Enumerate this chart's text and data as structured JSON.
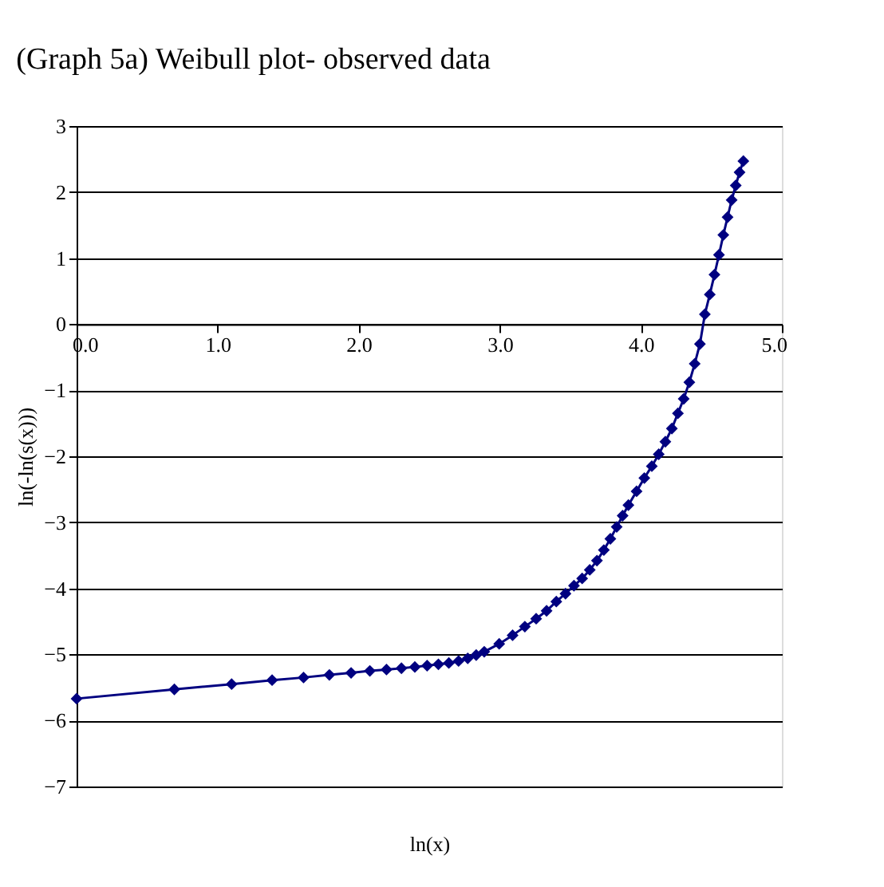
{
  "chart_data": {
    "type": "line",
    "title": "(Graph 5a) Weibull plot- observed data",
    "xlabel": "ln(x)",
    "ylabel": "ln(-ln(s(x)))",
    "xlim": [
      0,
      5
    ],
    "ylim": [
      -7,
      3
    ],
    "xticks": [
      {
        "value": 0,
        "label": "0.0"
      },
      {
        "value": 1,
        "label": "1.0"
      },
      {
        "value": 2,
        "label": "2.0"
      },
      {
        "value": 3,
        "label": "3.0"
      },
      {
        "value": 4,
        "label": "4.0"
      },
      {
        "value": 5,
        "label": "5.0"
      }
    ],
    "yticks": [
      -7,
      -6,
      -5,
      -4,
      -3,
      -2,
      -1,
      0,
      1,
      2,
      3
    ],
    "grid": "y",
    "marker": "diamond",
    "line_style": "solid",
    "series": [
      {
        "color": "#000080",
        "x": [
          0,
          0.693,
          1.099,
          1.386,
          1.609,
          1.792,
          1.946,
          2.079,
          2.197,
          2.303,
          2.398,
          2.485,
          2.565,
          2.639,
          2.708,
          2.773,
          2.833,
          2.89,
          2.996,
          3.091,
          3.178,
          3.258,
          3.332,
          3.401,
          3.466,
          3.526,
          3.584,
          3.638,
          3.689,
          3.738,
          3.784,
          3.829,
          3.871,
          3.912,
          3.97,
          4.025,
          4.078,
          4.127,
          4.174,
          4.22,
          4.263,
          4.304,
          4.344,
          4.382,
          4.419,
          4.454,
          4.489,
          4.522,
          4.554,
          4.585,
          4.615,
          4.644,
          4.673,
          4.7,
          4.727
        ],
        "values": [
          -5.67,
          -5.53,
          -5.45,
          -5.39,
          -5.35,
          -5.31,
          -5.28,
          -5.25,
          -5.23,
          -5.21,
          -5.19,
          -5.17,
          -5.15,
          -5.13,
          -5.1,
          -5.06,
          -5.01,
          -4.96,
          -4.84,
          -4.71,
          -4.58,
          -4.46,
          -4.34,
          -4.2,
          -4.08,
          -3.96,
          -3.85,
          -3.72,
          -3.58,
          -3.42,
          -3.25,
          -3.07,
          -2.9,
          -2.74,
          -2.53,
          -2.33,
          -2.15,
          -1.97,
          -1.78,
          -1.58,
          -1.35,
          -1.13,
          -0.88,
          -0.6,
          -0.3,
          0.15,
          0.45,
          0.75,
          1.05,
          1.35,
          1.62,
          1.88,
          2.1,
          2.3,
          2.47
        ]
      }
    ]
  }
}
